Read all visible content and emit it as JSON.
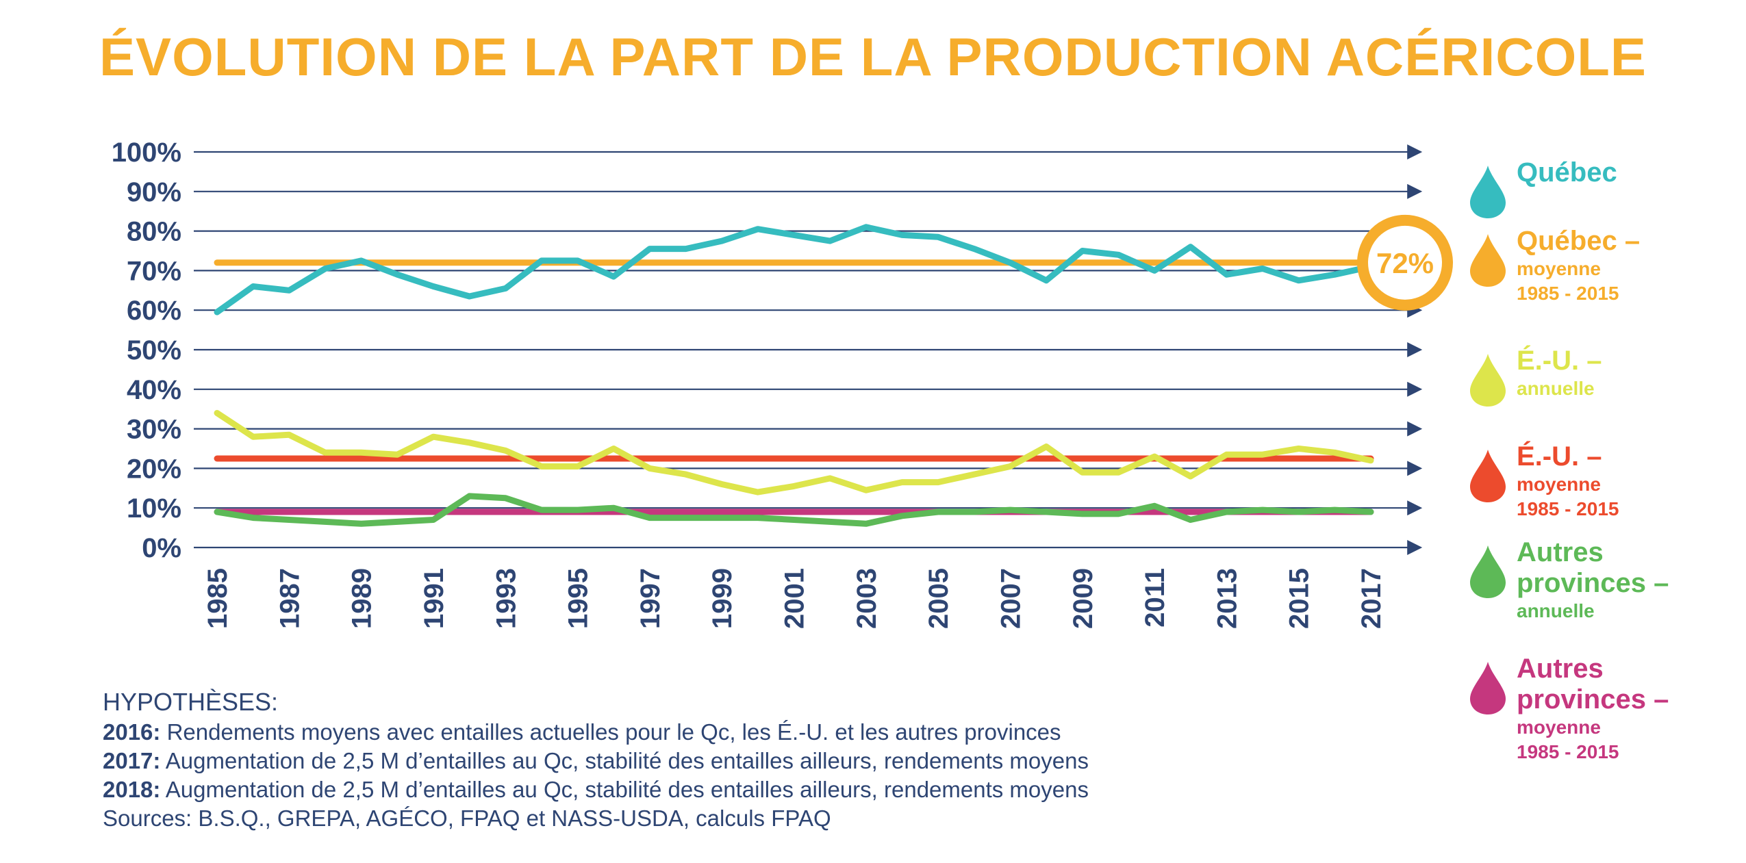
{
  "title": "ÉVOLUTION DE LA PART DE LA PRODUCTION ACÉRICOLE",
  "chart_data": {
    "type": "line",
    "title": "ÉVOLUTION DE LA PART DE LA PRODUCTION ACÉRICOLE",
    "y_ticks": [
      "0%",
      "10%",
      "20%",
      "30%",
      "40%",
      "50%",
      "60%",
      "70%",
      "80%",
      "90%",
      "100%"
    ],
    "x_ticks": [
      "1985",
      "1987",
      "1989",
      "1991",
      "1993",
      "1995",
      "1997",
      "1999",
      "2001",
      "2003",
      "2005",
      "2007",
      "2009",
      "2011",
      "2013",
      "2015",
      "2017"
    ],
    "xlim": [
      1985,
      2017
    ],
    "ylim": [
      0,
      100
    ],
    "grid": true,
    "series": [
      {
        "name": "Québec",
        "color": "#36bcbf",
        "x": [
          1985,
          1986,
          1987,
          1988,
          1989,
          1990,
          1991,
          1992,
          1993,
          1994,
          1995,
          1996,
          1997,
          1998,
          1999,
          2000,
          2001,
          2002,
          2003,
          2004,
          2005,
          2006,
          2007,
          2008,
          2009,
          2010,
          2011,
          2012,
          2013,
          2014,
          2015,
          2016,
          2017
        ],
        "values": [
          59.5,
          66,
          65,
          70.5,
          72.5,
          69,
          66,
          63.5,
          65.5,
          72.5,
          72.5,
          68.5,
          75.5,
          75.5,
          77.5,
          80.5,
          79,
          77.5,
          81,
          79,
          78.5,
          75.5,
          72,
          67.5,
          75,
          74,
          70,
          76,
          69,
          70.5,
          67.5,
          69,
          71
        ]
      },
      {
        "name": "Québec – moyenne 1985 - 2015",
        "color": "#f6ad2c",
        "x": [
          1985,
          2017
        ],
        "values": [
          72,
          72
        ]
      },
      {
        "name": "É.-U. – annuelle",
        "color": "#dde54b",
        "x": [
          1985,
          1986,
          1987,
          1988,
          1989,
          1990,
          1991,
          1992,
          1993,
          1994,
          1995,
          1996,
          1997,
          1998,
          1999,
          2000,
          2001,
          2002,
          2003,
          2004,
          2005,
          2006,
          2007,
          2008,
          2009,
          2010,
          2011,
          2012,
          2013,
          2014,
          2015,
          2016,
          2017
        ],
        "values": [
          34,
          28,
          28.5,
          24,
          24,
          23.5,
          28,
          26.5,
          24.5,
          20.5,
          20.5,
          25,
          20,
          18.5,
          16,
          14,
          15.5,
          17.5,
          14.5,
          16.5,
          16.5,
          18.5,
          20.5,
          25.5,
          19,
          19,
          23,
          18,
          23.5,
          23.5,
          25,
          24,
          22
        ]
      },
      {
        "name": "É.-U. – moyenne 1985 - 2015",
        "color": "#ec4b2d",
        "x": [
          1985,
          2017
        ],
        "values": [
          22.5,
          22.5
        ]
      },
      {
        "name": "Autres provinces – annuelle",
        "color": "#5db957",
        "x": [
          1985,
          1986,
          1987,
          1988,
          1989,
          1990,
          1991,
          1992,
          1993,
          1994,
          1995,
          1996,
          1997,
          1998,
          1999,
          2000,
          2001,
          2002,
          2003,
          2004,
          2005,
          2006,
          2007,
          2008,
          2009,
          2010,
          2011,
          2012,
          2013,
          2014,
          2015,
          2016,
          2017
        ],
        "values": [
          9,
          7.5,
          7,
          6.5,
          6,
          6.5,
          7,
          13,
          12.5,
          9.5,
          9.5,
          10,
          7.5,
          7.5,
          7.5,
          7.5,
          7,
          6.5,
          6,
          8,
          9,
          9,
          9.5,
          9,
          8.5,
          8.5,
          10.5,
          7,
          9,
          9.5,
          9,
          9.5,
          9
        ]
      },
      {
        "name": "Autres provinces – moyenne 1985 - 2015",
        "color": "#c5377e",
        "x": [
          1985,
          2017
        ],
        "values": [
          9,
          9
        ]
      }
    ],
    "annotations": [
      {
        "text": "72%",
        "x": 2017,
        "y": 72
      }
    ],
    "legend_position": "right"
  },
  "legend": [
    {
      "main": "Québec",
      "sub": [],
      "color": "#36bcbf"
    },
    {
      "main": "Québec –",
      "sub": [
        "moyenne",
        "1985 - 2015"
      ],
      "color": "#f6ad2c"
    },
    {
      "main": "É.-U. –",
      "sub": [
        "annuelle"
      ],
      "color": "#dde54b"
    },
    {
      "main": "É.-U. –",
      "sub": [
        "moyenne",
        "1985 - 2015"
      ],
      "color": "#ec4b2d"
    },
    {
      "main": "Autres provinces –",
      "sub": [
        "annuelle"
      ],
      "color": "#5db957"
    },
    {
      "main": "Autres provinces –",
      "sub": [
        "moyenne",
        "1985 - 2015"
      ],
      "color": "#c5377e"
    }
  ],
  "notes": {
    "heading": "HYPOTHÈSES:",
    "lines": [
      {
        "label": "2016:",
        "text": " Rendements moyens avec entailles actuelles pour le Qc, les É.-U. et les autres provinces"
      },
      {
        "label": "2017:",
        "text": " Augmentation de 2,5 M d’entailles au Qc, stabilité des entailles ailleurs, rendements moyens"
      },
      {
        "label": "2018:",
        "text": " Augmentation de 2,5 M d’entailles au Qc, stabilité des entailles ailleurs, rendements moyens"
      }
    ],
    "sources": "Sources: B.S.Q., GREPA, AGÉCO, FPAQ et NASS-USDA, calculs FPAQ"
  },
  "colors": {
    "axis": "#2e4573",
    "title": "#f6ad2c"
  }
}
